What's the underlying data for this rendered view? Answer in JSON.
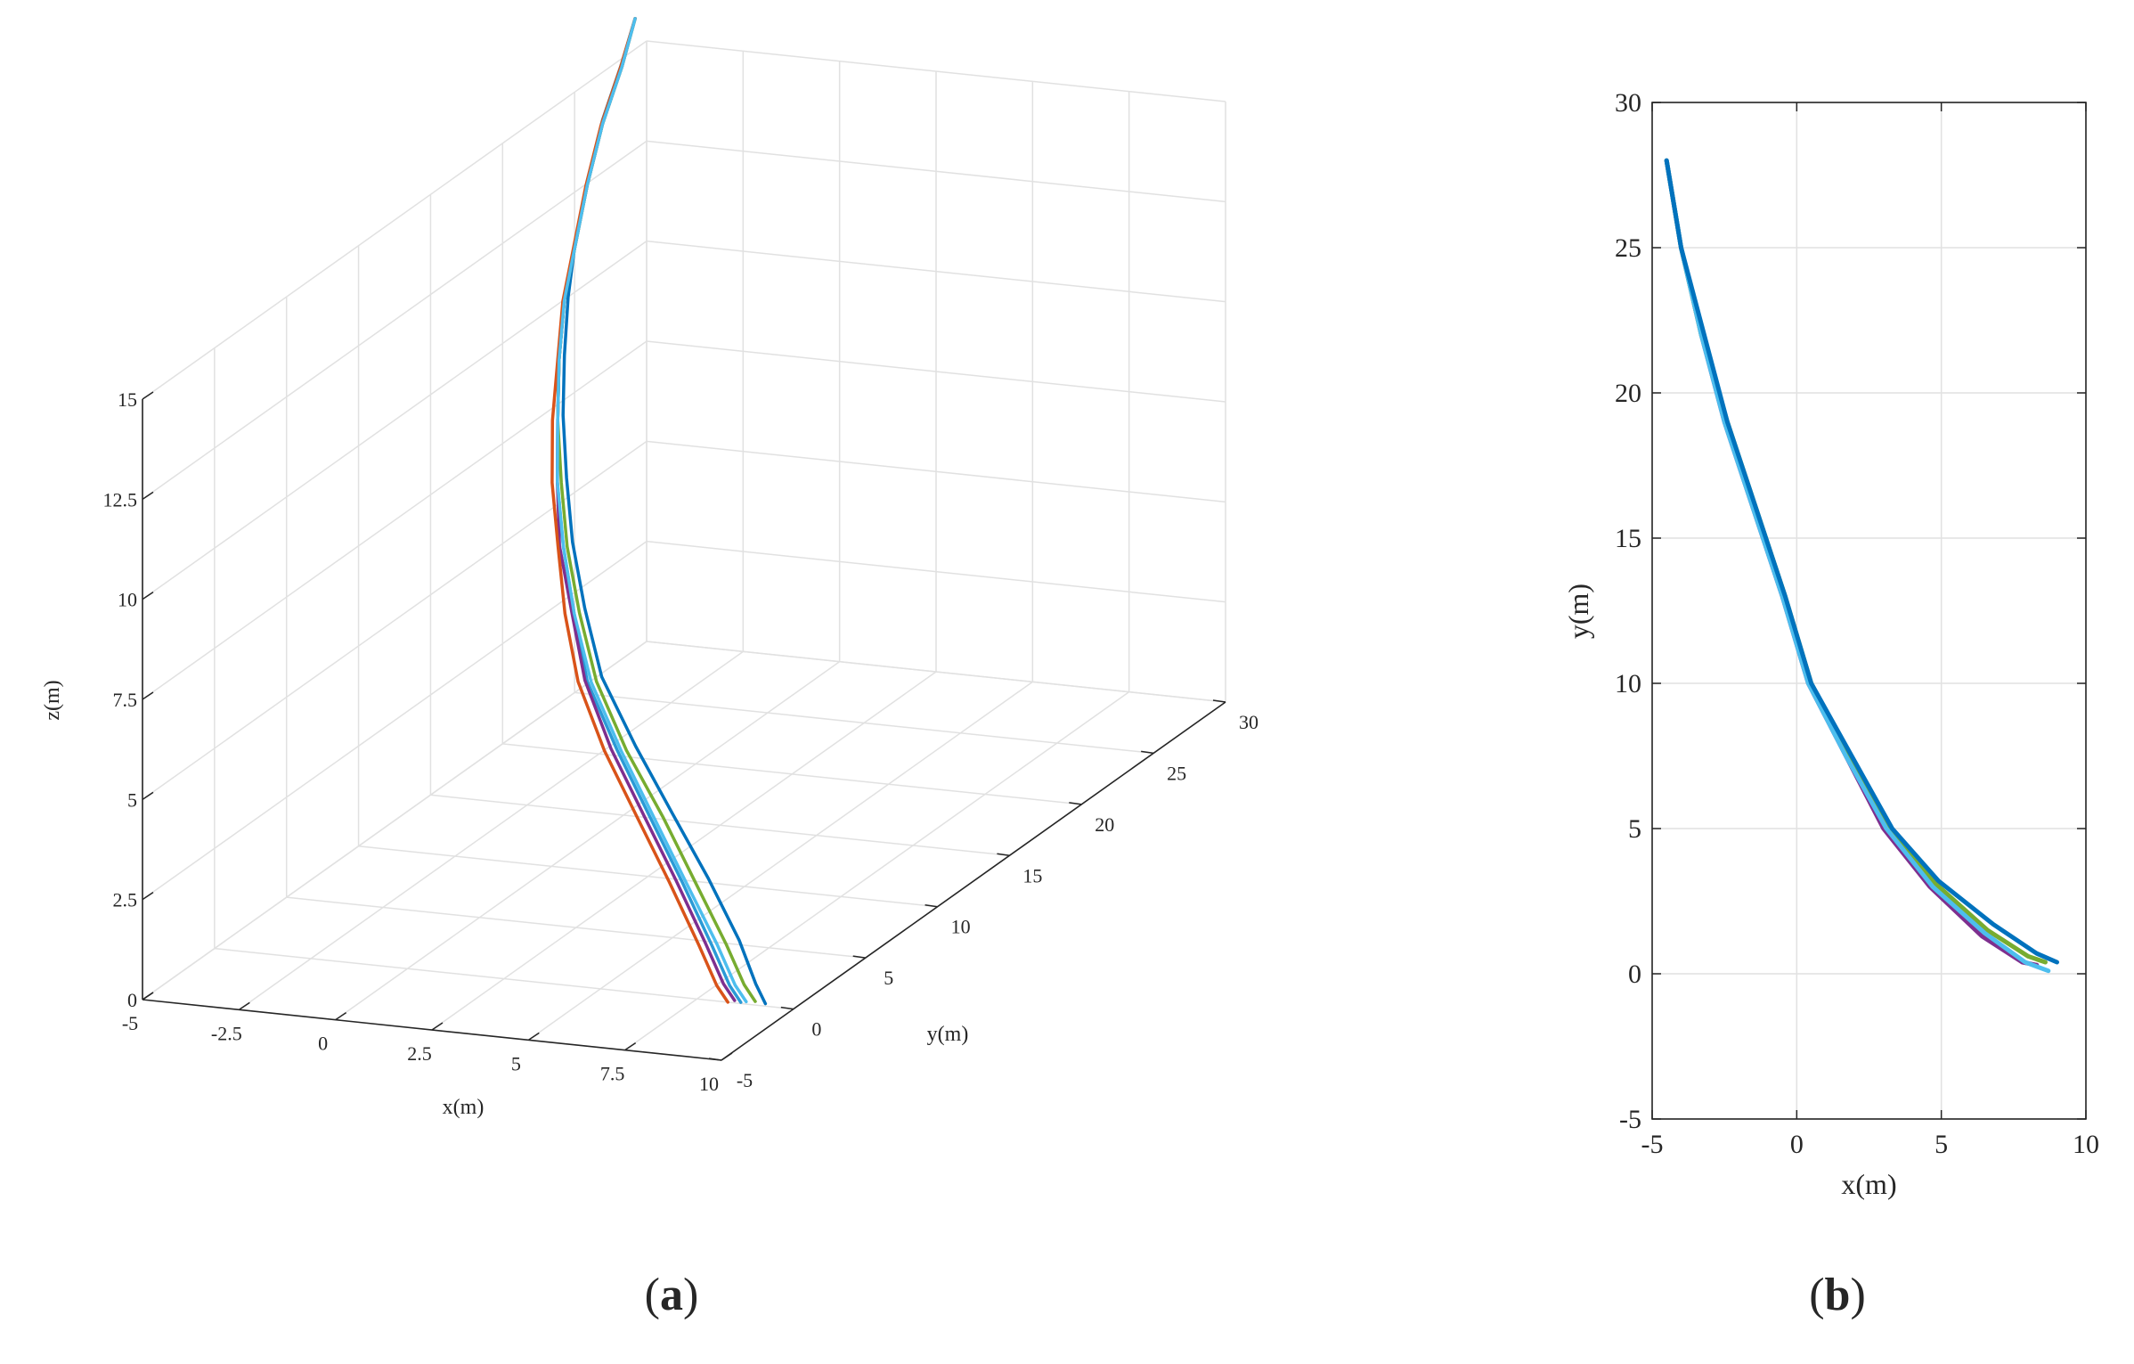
{
  "panels": {
    "a": {
      "label": "a"
    },
    "b": {
      "label": "b"
    }
  },
  "colors": {
    "axis": "#262626",
    "grid": "#e1e1e1",
    "trajectory": "#0072bd"
  },
  "chart_data": [
    {
      "type": "line",
      "projection": "3d",
      "xlabel": "x(m)",
      "ylabel": "y(m)",
      "zlabel": "z(m)",
      "xlim": [
        -5,
        10
      ],
      "ylim": [
        -5,
        30
      ],
      "zlim": [
        0,
        15
      ],
      "xticks": [
        "-5",
        "-2.5",
        "0",
        "2.5",
        "5",
        "7.5",
        "10"
      ],
      "yticks": [
        "-5",
        "0",
        "5",
        "10",
        "15",
        "20",
        "25",
        "30"
      ],
      "zticks": [
        "0",
        "2.5",
        "5",
        "7.5",
        "10",
        "12.5",
        "15"
      ],
      "grid": true,
      "series": [
        {
          "color": "#0072bd",
          "points": [
            [
              9.2,
              0.2,
              0
            ],
            [
              8.8,
              0.6,
              0.35
            ],
            [
              8.0,
              1.6,
              1.1
            ],
            [
              6.6,
              3.2,
              2.1
            ],
            [
              5.0,
              5.0,
              3.1
            ],
            [
              3.3,
              7.0,
              4.1
            ],
            [
              1.6,
              9.2,
              5.1
            ],
            [
              0.3,
              11.5,
              6.1
            ],
            [
              -0.8,
              13.6,
              7.1
            ],
            [
              -1.7,
              15.6,
              8.1
            ],
            [
              -2.5,
              17.5,
              9.1
            ],
            [
              -3.1,
              19.2,
              10.1
            ],
            [
              -3.6,
              20.8,
              11.1
            ],
            [
              -4.0,
              22.4,
              12.1
            ],
            [
              -4.3,
              24.0,
              13.1
            ],
            [
              -4.5,
              25.6,
              14.2
            ],
            [
              -4.6,
              27.2,
              15.2
            ],
            [
              -4.7,
              28.4,
              16.0
            ]
          ]
        },
        {
          "color": "#2b9ad6",
          "points": [
            [
              8.6,
              0.1,
              0
            ],
            [
              8.2,
              0.4,
              0.3
            ],
            [
              7.4,
              1.3,
              1.0
            ],
            [
              6.0,
              3.0,
              2.0
            ],
            [
              4.5,
              4.8,
              3.0
            ],
            [
              2.9,
              6.8,
              4.0
            ],
            [
              1.3,
              9.0,
              5.0
            ],
            [
              0.1,
              11.3,
              6.0
            ],
            [
              -1.0,
              13.5,
              7.0
            ],
            [
              -1.9,
              15.5,
              8.0
            ],
            [
              -2.6,
              17.4,
              9.0
            ],
            [
              -3.2,
              19.1,
              10.0
            ],
            [
              -3.7,
              20.8,
              11.0
            ],
            [
              -4.0,
              22.4,
              12.0
            ],
            [
              -4.3,
              24.0,
              13.0
            ],
            [
              -4.5,
              25.6,
              14.1
            ],
            [
              -4.6,
              27.2,
              15.1
            ],
            [
              -4.7,
              28.4,
              16.0
            ]
          ]
        },
        {
          "color": "#7e2f8e",
          "points": [
            [
              8.4,
              0.2,
              0
            ],
            [
              8.0,
              0.5,
              0.3
            ],
            [
              7.2,
              1.4,
              1.0
            ],
            [
              5.8,
              3.1,
              2.0
            ],
            [
              4.3,
              4.9,
              3.0
            ],
            [
              2.7,
              6.9,
              4.0
            ],
            [
              1.2,
              9.1,
              5.0
            ],
            [
              0.0,
              11.4,
              6.0
            ],
            [
              -1.1,
              13.5,
              7.0
            ],
            [
              -1.9,
              15.5,
              8.0
            ],
            [
              -2.6,
              17.4,
              9.0
            ],
            [
              -3.2,
              19.1,
              10.0
            ],
            [
              -3.7,
              20.8,
              11.0
            ],
            [
              -4.0,
              22.4,
              12.0
            ],
            [
              -4.3,
              24.0,
              13.0
            ],
            [
              -4.5,
              25.6,
              14.1
            ],
            [
              -4.6,
              27.2,
              15.1
            ],
            [
              -4.7,
              28.4,
              16.0
            ]
          ]
        },
        {
          "color": "#77ac30",
          "points": [
            [
              8.9,
              0.3,
              0
            ],
            [
              8.5,
              0.6,
              0.3
            ],
            [
              7.7,
              1.5,
              1.0
            ],
            [
              6.3,
              3.1,
              2.0
            ],
            [
              4.8,
              4.9,
              3.0
            ],
            [
              3.1,
              6.9,
              4.0
            ],
            [
              1.5,
              9.1,
              5.0
            ],
            [
              0.2,
              11.4,
              6.0
            ],
            [
              -0.9,
              13.5,
              7.0
            ],
            [
              -1.8,
              15.5,
              8.0
            ],
            [
              -2.6,
              17.4,
              9.0
            ],
            [
              -3.2,
              19.1,
              10.0
            ],
            [
              -3.7,
              20.8,
              11.0
            ],
            [
              -4.0,
              22.4,
              12.0
            ],
            [
              -4.3,
              24.0,
              13.0
            ],
            [
              -4.5,
              25.6,
              14.1
            ],
            [
              -4.6,
              27.2,
              15.1
            ],
            [
              -4.7,
              28.4,
              16.0
            ]
          ]
        },
        {
          "color": "#d95319",
          "points": [
            [
              8.3,
              0.0,
              0
            ],
            [
              7.9,
              0.3,
              0.3
            ],
            [
              7.1,
              1.2,
              1.0
            ],
            [
              5.7,
              2.9,
              2.0
            ],
            [
              4.2,
              4.7,
              3.0
            ],
            [
              2.6,
              6.7,
              4.0
            ],
            [
              1.1,
              8.9,
              5.0
            ],
            [
              -0.1,
              11.2,
              6.0
            ],
            [
              -1.1,
              13.4,
              7.0
            ],
            [
              -2.0,
              15.4,
              8.0
            ],
            [
              -2.7,
              17.3,
              9.0
            ],
            [
              -3.2,
              19.0,
              10.0
            ],
            [
              -3.7,
              20.7,
              11.0
            ],
            [
              -4.0,
              22.3,
              12.0
            ],
            [
              -4.3,
              23.9,
              13.0
            ],
            [
              -4.5,
              25.5,
              14.1
            ],
            [
              -4.6,
              27.1,
              15.1
            ],
            [
              -4.7,
              28.4,
              16.0
            ]
          ]
        },
        {
          "color": "#4dbeee",
          "points": [
            [
              8.7,
              0.2,
              0
            ],
            [
              8.3,
              0.5,
              0.3
            ],
            [
              7.5,
              1.4,
              1.0
            ],
            [
              6.1,
              3.0,
              2.0
            ],
            [
              4.6,
              4.8,
              3.0
            ],
            [
              3.0,
              6.8,
              4.0
            ],
            [
              1.4,
              9.0,
              5.0
            ],
            [
              0.1,
              11.3,
              6.0
            ],
            [
              -1.0,
              13.5,
              7.0
            ],
            [
              -1.9,
              15.5,
              8.0
            ],
            [
              -2.6,
              17.4,
              9.0
            ],
            [
              -3.2,
              19.1,
              10.0
            ],
            [
              -3.7,
              20.8,
              11.0
            ],
            [
              -4.0,
              22.4,
              12.0
            ],
            [
              -4.3,
              24.0,
              13.0
            ],
            [
              -4.5,
              25.6,
              14.1
            ],
            [
              -4.6,
              27.2,
              15.1
            ],
            [
              -4.7,
              28.4,
              16.0
            ]
          ]
        }
      ]
    },
    {
      "type": "line",
      "xlabel": "x(m)",
      "ylabel": "y(m)",
      "xlim": [
        -5,
        10
      ],
      "ylim": [
        -5,
        30
      ],
      "xticks": [
        "-5",
        "0",
        "5",
        "10"
      ],
      "yticks": [
        "-5",
        "0",
        "5",
        "10",
        "15",
        "20",
        "25",
        "30"
      ],
      "grid": true,
      "series": [
        {
          "color": "#7e2f8e",
          "points": [
            [
              -4.5,
              28.0
            ],
            [
              -4.0,
              25.0
            ],
            [
              -3.3,
              22.0
            ],
            [
              -2.5,
              19.0
            ],
            [
              -1.5,
              16.0
            ],
            [
              -0.5,
              13.0
            ],
            [
              0.4,
              10.0
            ],
            [
              1.7,
              7.5
            ],
            [
              3.0,
              5.0
            ],
            [
              4.6,
              3.0
            ],
            [
              6.4,
              1.3
            ],
            [
              7.8,
              0.4
            ],
            [
              8.3,
              0.3
            ]
          ]
        },
        {
          "color": "#77ac30",
          "points": [
            [
              -4.5,
              28.0
            ],
            [
              -4.0,
              25.0
            ],
            [
              -3.3,
              22.0
            ],
            [
              -2.4,
              19.0
            ],
            [
              -1.4,
              16.0
            ],
            [
              -0.4,
              13.0
            ],
            [
              0.5,
              10.0
            ],
            [
              1.8,
              7.5
            ],
            [
              3.2,
              5.0
            ],
            [
              4.8,
              3.1
            ],
            [
              6.6,
              1.5
            ],
            [
              8.0,
              0.6
            ],
            [
              8.6,
              0.4
            ]
          ]
        },
        {
          "color": "#4dbeee",
          "points": [
            [
              -4.5,
              28.0
            ],
            [
              -4.0,
              25.0
            ],
            [
              -3.3,
              22.0
            ],
            [
              -2.5,
              19.0
            ],
            [
              -1.5,
              16.0
            ],
            [
              -0.5,
              13.0
            ],
            [
              0.4,
              10.0
            ],
            [
              1.7,
              7.5
            ],
            [
              3.1,
              5.0
            ],
            [
              4.7,
              3.0
            ],
            [
              6.5,
              1.4
            ],
            [
              7.9,
              0.4
            ],
            [
              8.7,
              0.1
            ]
          ]
        },
        {
          "color": "#0072bd",
          "points": [
            [
              -4.5,
              28.0
            ],
            [
              -4.0,
              25.0
            ],
            [
              -3.2,
              22.0
            ],
            [
              -2.4,
              19.0
            ],
            [
              -1.4,
              16.0
            ],
            [
              -0.4,
              13.0
            ],
            [
              0.5,
              10.0
            ],
            [
              1.9,
              7.5
            ],
            [
              3.3,
              5.0
            ],
            [
              4.9,
              3.2
            ],
            [
              6.8,
              1.7
            ],
            [
              8.3,
              0.7
            ],
            [
              9.0,
              0.4
            ]
          ]
        }
      ]
    }
  ]
}
